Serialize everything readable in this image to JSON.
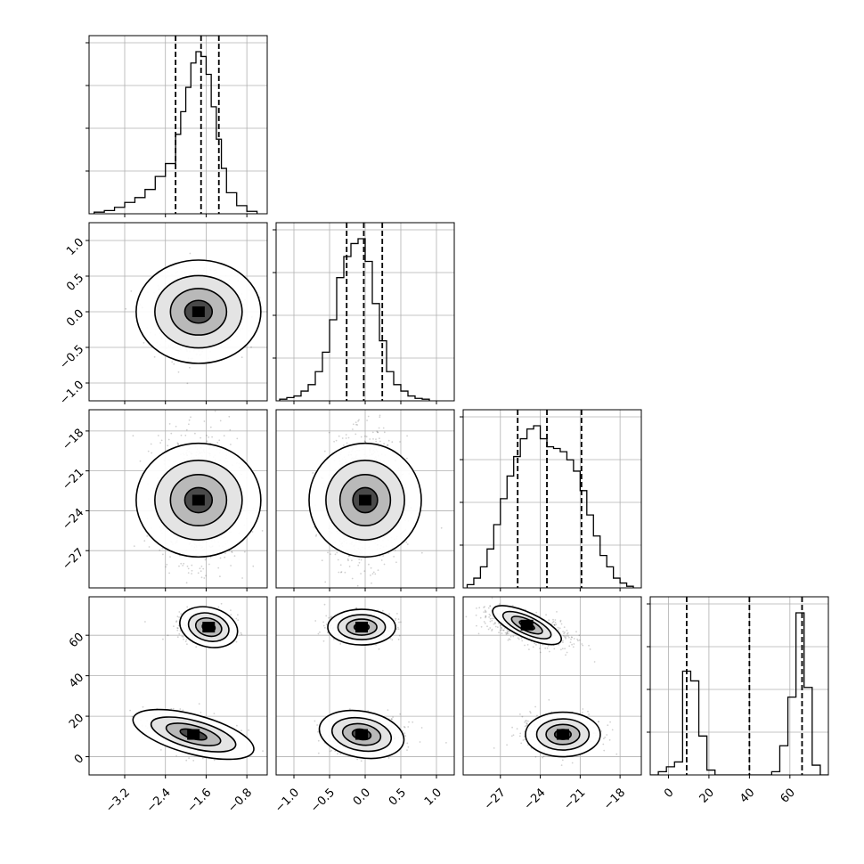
{
  "chart_data": {
    "type": "corner",
    "parameters": [
      {
        "range": [
          -3.9,
          -0.4
        ],
        "ticks": [
          -3.2,
          -2.4,
          -1.6,
          -0.8
        ],
        "tick_labels": [
          "−3.2",
          "−2.4",
          "−1.6",
          "−0.8"
        ],
        "mean": -1.75,
        "sd": 0.38,
        "quantiles": [
          -2.2,
          -1.7,
          -1.35
        ],
        "hist_bins": [
          -3.8,
          -3.6,
          -3.4,
          -3.2,
          -3.0,
          -2.8,
          -2.6,
          -2.4,
          -2.2,
          -2.1,
          -2.0,
          -1.9,
          -1.8,
          -1.7,
          -1.6,
          -1.5,
          -1.4,
          -1.3,
          -1.2,
          -1.0,
          -0.8,
          -0.6
        ],
        "hist_counts": [
          0.01,
          0.02,
          0.04,
          0.07,
          0.1,
          0.15,
          0.23,
          0.31,
          0.49,
          0.63,
          0.78,
          0.93,
          1.0,
          0.97,
          0.86,
          0.66,
          0.46,
          0.28,
          0.13,
          0.05,
          0.015
        ]
      },
      {
        "range": [
          -1.25,
          1.25
        ],
        "ticks": [
          -1.0,
          -0.5,
          0.0,
          0.5,
          1.0
        ],
        "tick_labels": [
          "−1.0",
          "−0.5",
          "0.0",
          "0.5",
          "1.0"
        ],
        "mean": 0.0,
        "sd": 0.25,
        "quantiles": [
          -0.26,
          -0.02,
          0.24
        ],
        "hist_bins": [
          -1.2,
          -1.1,
          -1.0,
          -0.9,
          -0.8,
          -0.7,
          -0.6,
          -0.5,
          -0.4,
          -0.3,
          -0.2,
          -0.1,
          0.0,
          0.1,
          0.2,
          0.3,
          0.4,
          0.5,
          0.6,
          0.7,
          0.8,
          0.9
        ],
        "hist_counts": [
          0.01,
          0.02,
          0.03,
          0.06,
          0.1,
          0.18,
          0.3,
          0.5,
          0.76,
          0.89,
          0.97,
          1.0,
          0.86,
          0.6,
          0.37,
          0.18,
          0.1,
          0.06,
          0.03,
          0.015,
          0.01
        ]
      },
      {
        "range": [
          -29.8,
          -16.4
        ],
        "ticks": [
          -27,
          -24,
          -21,
          -18
        ],
        "tick_labels": [
          "−27",
          "−24",
          "−21",
          "−18"
        ],
        "mean": -23.2,
        "sd": 2.3,
        "quantiles": [
          -25.7,
          -23.5,
          -20.9
        ],
        "hist_bins": [
          -29.5,
          -29.0,
          -28.5,
          -28.0,
          -27.5,
          -27.0,
          -26.5,
          -26.0,
          -25.5,
          -25.0,
          -24.5,
          -24.0,
          -23.5,
          -23.0,
          -22.5,
          -22.0,
          -21.5,
          -21.0,
          -20.5,
          -20.0,
          -19.5,
          -19.0,
          -18.5,
          -18.0,
          -17.5,
          -17.0
        ],
        "hist_counts": [
          0.02,
          0.06,
          0.13,
          0.24,
          0.39,
          0.55,
          0.69,
          0.81,
          0.92,
          0.98,
          1.0,
          0.92,
          0.87,
          0.86,
          0.84,
          0.79,
          0.72,
          0.6,
          0.45,
          0.32,
          0.2,
          0.13,
          0.06,
          0.03,
          0.01
        ]
      },
      {
        "range": [
          -9,
          79
        ],
        "ticks": [
          0,
          20,
          40,
          60
        ],
        "tick_labels": [
          "0",
          "20",
          "40",
          "60"
        ],
        "mean": 38,
        "sd": 27,
        "quantiles": [
          9,
          40,
          66
        ],
        "hist_bins": [
          -9,
          -5,
          -1,
          3,
          7,
          11,
          15,
          19,
          23,
          27,
          31,
          35,
          39,
          43,
          47,
          51,
          55,
          59,
          63,
          67,
          71,
          75,
          79
        ],
        "hist_counts": [
          0.0,
          0.02,
          0.05,
          0.08,
          0.64,
          0.58,
          0.24,
          0.03,
          0.0,
          0.0,
          0.0,
          0.0,
          0.0,
          0.0,
          0.0,
          0.02,
          0.18,
          0.48,
          1.0,
          0.54,
          0.06,
          0.0
        ]
      }
    ],
    "grid": true,
    "legend": "none"
  }
}
